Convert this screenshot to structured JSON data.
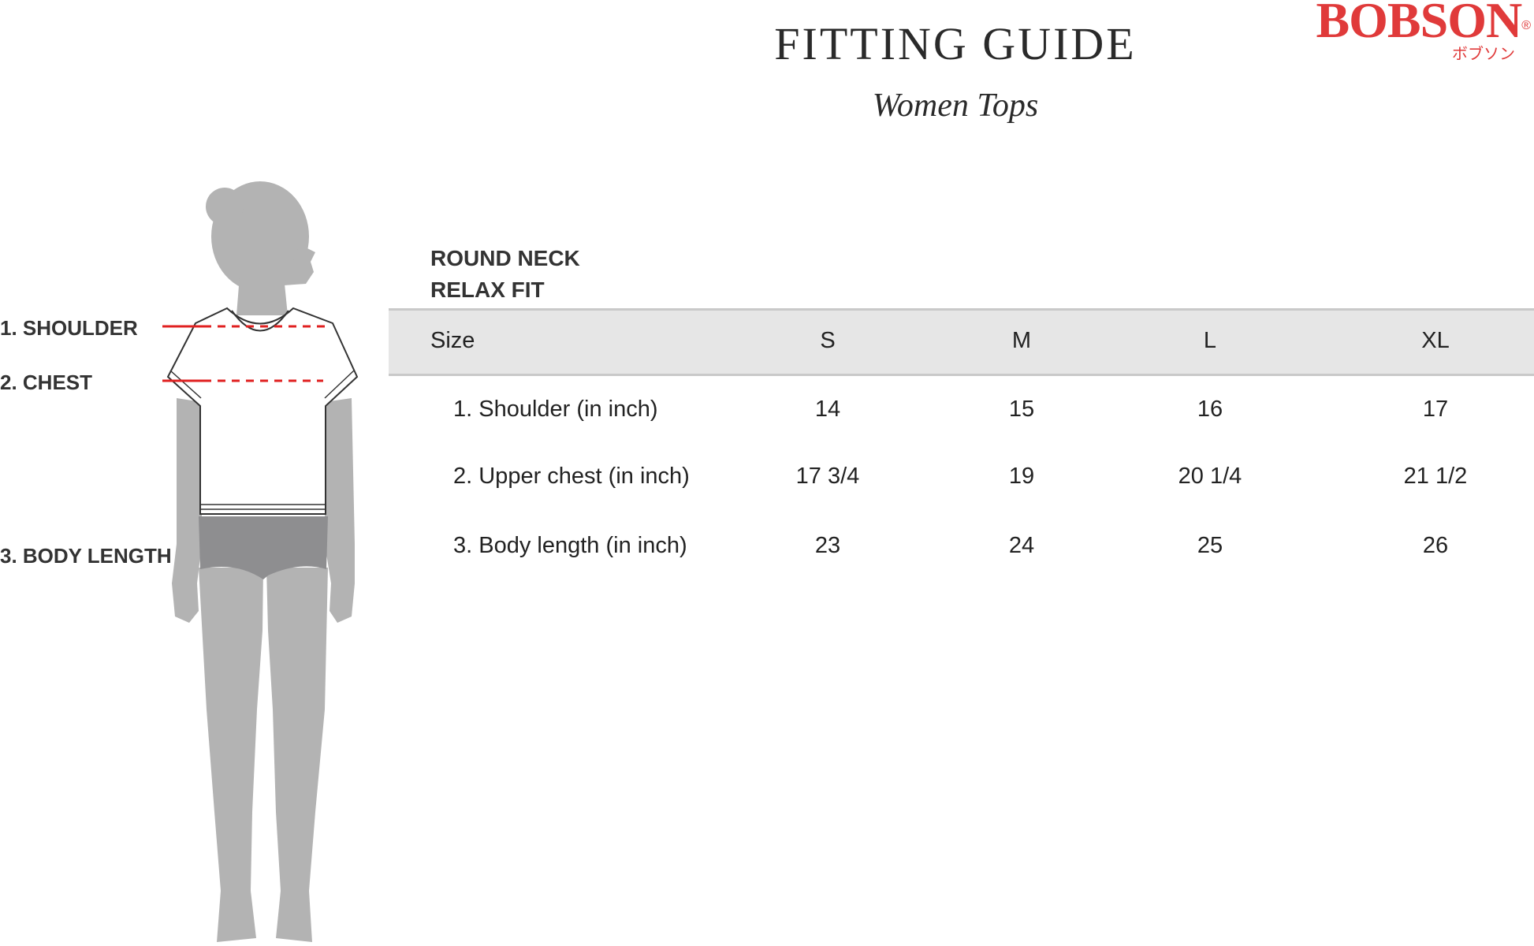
{
  "header": {
    "title": "FITTING GUIDE",
    "subtitle": "Women Tops",
    "brand": {
      "name": "BOBSON",
      "registered": "®",
      "katakana": "ボブソン",
      "color": "#e03a3a"
    }
  },
  "style": {
    "neck": "ROUND NECK",
    "fit": "RELAX FIT"
  },
  "measure_labels": [
    "1. SHOULDER",
    "2. CHEST",
    "3. BODY LENGTH"
  ],
  "table": {
    "size_header": "Size",
    "sizes": [
      "S",
      "M",
      "L",
      "XL"
    ],
    "rows": [
      {
        "label": "1. Shoulder (in inch)",
        "values": [
          "14",
          "15",
          "16",
          "17"
        ]
      },
      {
        "label": "2. Upper chest (in inch)",
        "values": [
          "17 3/4",
          "19",
          "20 1/4",
          "21 1/2"
        ]
      },
      {
        "label": "3. Body length (in inch)",
        "values": [
          "23",
          "24",
          "25",
          "26"
        ]
      }
    ]
  },
  "colors": {
    "marker_line": "#e02020",
    "header_band": "#e6e6e6",
    "figure": "#b3b3b3",
    "shorts": "#8e8e90"
  }
}
